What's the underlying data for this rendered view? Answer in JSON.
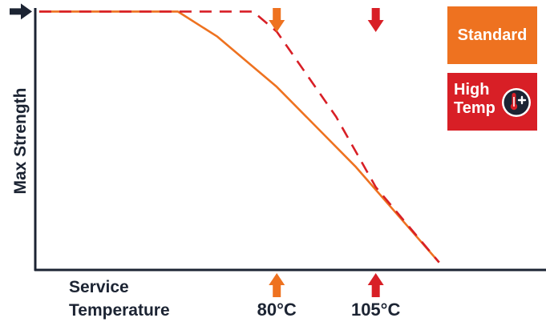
{
  "chart_data": {
    "type": "line",
    "title": "",
    "xlabel_lines": [
      "Service",
      "Temperature"
    ],
    "ylabel": "Max Strength",
    "x_ticks": [
      {
        "label": "80°C",
        "value": 80,
        "color": "#ee7220"
      },
      {
        "label": "105°C",
        "value": 105,
        "color": "#d81f26"
      }
    ],
    "series": [
      {
        "name": "Standard",
        "color": "#ee7220",
        "style": "solid",
        "points": [
          [
            20,
            100
          ],
          [
            55,
            100
          ],
          [
            65,
            90
          ],
          [
            80,
            70
          ],
          [
            100,
            38
          ],
          [
            121,
            0
          ]
        ]
      },
      {
        "name": "High Temp",
        "color": "#d81f26",
        "style": "dashed",
        "points": [
          [
            20,
            100
          ],
          [
            74,
            100
          ],
          [
            80,
            92
          ],
          [
            95,
            58
          ],
          [
            105,
            30
          ],
          [
            121,
            0
          ]
        ]
      }
    ],
    "xlim": [
      19,
      148
    ],
    "ylim": [
      -3,
      103
    ],
    "grid": false,
    "legend_placement": "top-right",
    "max_marker_color": "#1c2433",
    "axis_color": "#1c2433"
  }
}
